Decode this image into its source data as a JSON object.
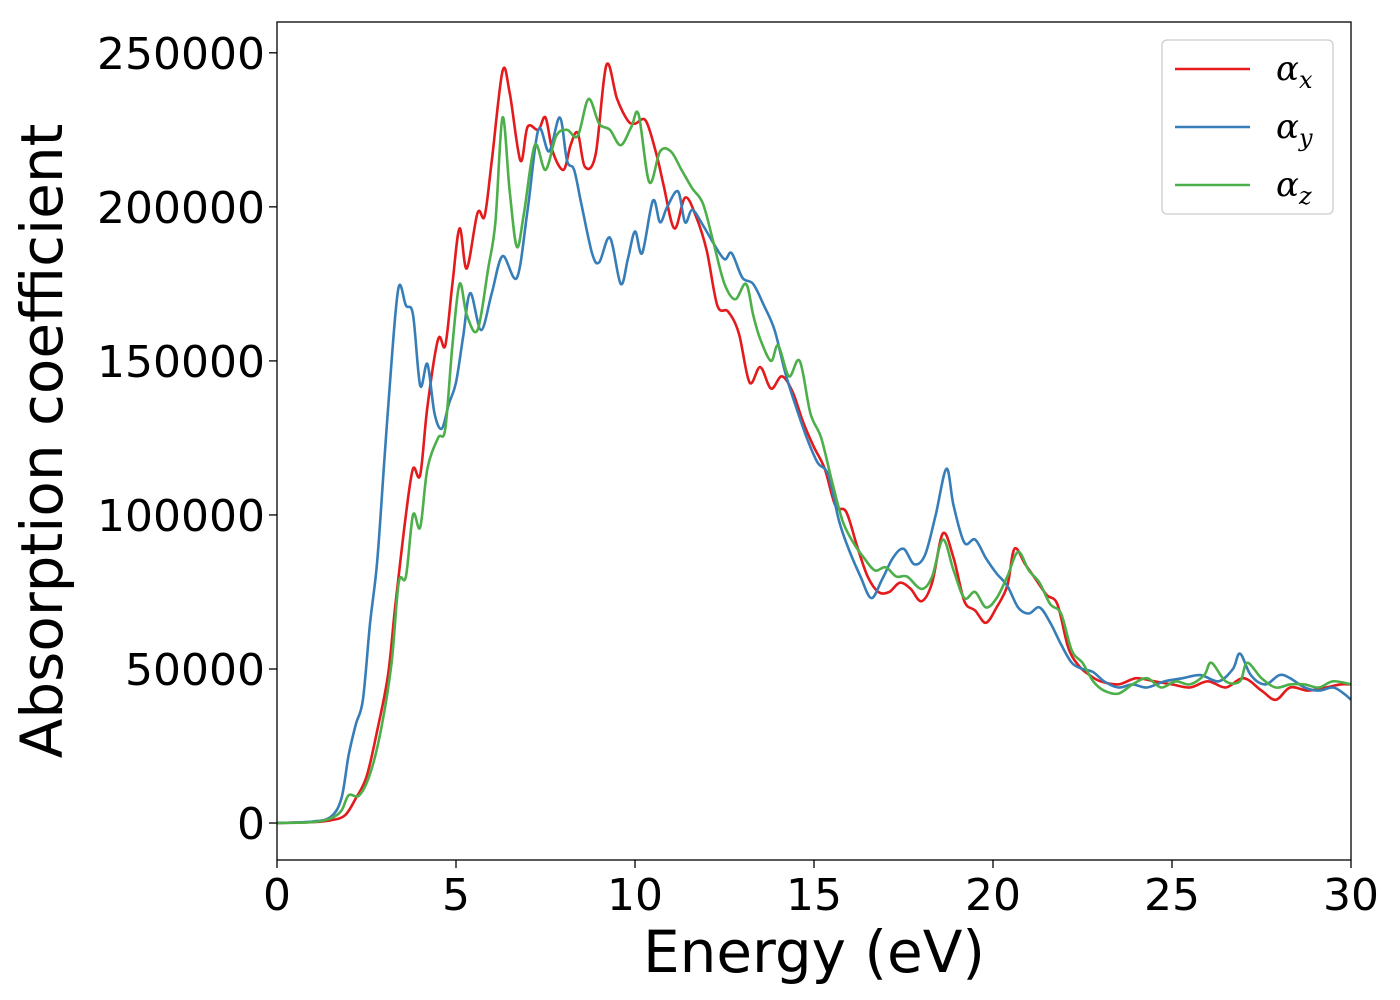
{
  "chart_data": {
    "type": "line",
    "title": "",
    "xlabel": "Energy (eV)",
    "ylabel": "Absorption coefficient",
    "xlim": [
      0,
      30
    ],
    "ylim": [
      -12000,
      260000
    ],
    "xticks": [
      0,
      5,
      10,
      15,
      20,
      25,
      30
    ],
    "yticks": [
      0,
      50000,
      100000,
      150000,
      200000,
      250000
    ],
    "grid": false,
    "legend_position": "top-right",
    "series": [
      {
        "name": "αx",
        "symbol": "α",
        "sub": "x",
        "color": "#e41a1c",
        "points": [
          [
            0,
            0
          ],
          [
            1,
            300
          ],
          [
            1.5,
            900
          ],
          [
            1.9,
            2500
          ],
          [
            2.2,
            8000
          ],
          [
            2.5,
            15000
          ],
          [
            2.8,
            30000
          ],
          [
            3.1,
            48000
          ],
          [
            3.3,
            70000
          ],
          [
            3.6,
            100000
          ],
          [
            3.8,
            115000
          ],
          [
            4.0,
            113000
          ],
          [
            4.2,
            135000
          ],
          [
            4.5,
            157000
          ],
          [
            4.7,
            155000
          ],
          [
            4.9,
            175000
          ],
          [
            5.1,
            193000
          ],
          [
            5.3,
            180000
          ],
          [
            5.6,
            198000
          ],
          [
            5.8,
            197000
          ],
          [
            6.0,
            215000
          ],
          [
            6.3,
            244000
          ],
          [
            6.5,
            237000
          ],
          [
            6.8,
            215000
          ],
          [
            7.0,
            226000
          ],
          [
            7.3,
            225000
          ],
          [
            7.5,
            229000
          ],
          [
            7.7,
            218000
          ],
          [
            8.0,
            212000
          ],
          [
            8.2,
            220000
          ],
          [
            8.4,
            224000
          ],
          [
            8.6,
            213000
          ],
          [
            8.9,
            217000
          ],
          [
            9.2,
            246000
          ],
          [
            9.5,
            235000
          ],
          [
            9.8,
            228000
          ],
          [
            10.0,
            227000
          ],
          [
            10.3,
            228000
          ],
          [
            10.6,
            217000
          ],
          [
            10.8,
            207000
          ],
          [
            11.1,
            193000
          ],
          [
            11.4,
            203000
          ],
          [
            11.7,
            197000
          ],
          [
            12.0,
            186000
          ],
          [
            12.3,
            168000
          ],
          [
            12.6,
            166000
          ],
          [
            12.9,
            159000
          ],
          [
            13.2,
            143000
          ],
          [
            13.5,
            148000
          ],
          [
            13.8,
            141000
          ],
          [
            14.1,
            145000
          ],
          [
            14.4,
            140000
          ],
          [
            14.7,
            130000
          ],
          [
            15.0,
            122000
          ],
          [
            15.3,
            115000
          ],
          [
            15.6,
            103000
          ],
          [
            15.9,
            101000
          ],
          [
            16.2,
            90000
          ],
          [
            16.5,
            80000
          ],
          [
            16.8,
            75000
          ],
          [
            17.1,
            75000
          ],
          [
            17.4,
            78000
          ],
          [
            17.7,
            76000
          ],
          [
            18.0,
            72000
          ],
          [
            18.3,
            78000
          ],
          [
            18.6,
            94000
          ],
          [
            18.9,
            86000
          ],
          [
            19.2,
            72000
          ],
          [
            19.5,
            69000
          ],
          [
            19.8,
            65000
          ],
          [
            20.1,
            70000
          ],
          [
            20.4,
            77000
          ],
          [
            20.6,
            89000
          ],
          [
            20.9,
            84000
          ],
          [
            21.2,
            79000
          ],
          [
            21.5,
            74000
          ],
          [
            21.8,
            71000
          ],
          [
            22.1,
            57000
          ],
          [
            22.4,
            51000
          ],
          [
            22.7,
            48000
          ],
          [
            23.0,
            46000
          ],
          [
            23.5,
            45000
          ],
          [
            24.0,
            47000
          ],
          [
            24.5,
            46000
          ],
          [
            25.0,
            45000
          ],
          [
            25.5,
            44000
          ],
          [
            26.0,
            46000
          ],
          [
            26.5,
            44000
          ],
          [
            27.0,
            47000
          ],
          [
            27.5,
            43000
          ],
          [
            27.9,
            40000
          ],
          [
            28.3,
            44000
          ],
          [
            28.8,
            43000
          ],
          [
            29.3,
            44000
          ],
          [
            29.7,
            45000
          ],
          [
            30.0,
            45000
          ]
        ]
      },
      {
        "name": "αy",
        "symbol": "α",
        "sub": "y",
        "color": "#377eb8",
        "points": [
          [
            0,
            0
          ],
          [
            1,
            500
          ],
          [
            1.5,
            2000
          ],
          [
            1.8,
            8000
          ],
          [
            2.0,
            22000
          ],
          [
            2.2,
            32000
          ],
          [
            2.4,
            40000
          ],
          [
            2.6,
            65000
          ],
          [
            2.8,
            85000
          ],
          [
            3.0,
            118000
          ],
          [
            3.2,
            150000
          ],
          [
            3.4,
            174000
          ],
          [
            3.6,
            168000
          ],
          [
            3.8,
            165000
          ],
          [
            4.0,
            142000
          ],
          [
            4.2,
            149000
          ],
          [
            4.4,
            133000
          ],
          [
            4.6,
            128000
          ],
          [
            4.8,
            136000
          ],
          [
            5.0,
            143000
          ],
          [
            5.2,
            158000
          ],
          [
            5.4,
            172000
          ],
          [
            5.7,
            160000
          ],
          [
            6.0,
            172000
          ],
          [
            6.3,
            184000
          ],
          [
            6.7,
            177000
          ],
          [
            7.0,
            199000
          ],
          [
            7.3,
            225000
          ],
          [
            7.6,
            218000
          ],
          [
            7.9,
            229000
          ],
          [
            8.1,
            215000
          ],
          [
            8.3,
            212000
          ],
          [
            8.5,
            201000
          ],
          [
            8.8,
            185000
          ],
          [
            9.0,
            182000
          ],
          [
            9.3,
            190000
          ],
          [
            9.6,
            175000
          ],
          [
            9.8,
            183000
          ],
          [
            10.0,
            192000
          ],
          [
            10.2,
            185000
          ],
          [
            10.5,
            202000
          ],
          [
            10.7,
            195000
          ],
          [
            10.9,
            200000
          ],
          [
            11.2,
            205000
          ],
          [
            11.4,
            195000
          ],
          [
            11.6,
            199000
          ],
          [
            11.9,
            194000
          ],
          [
            12.2,
            188000
          ],
          [
            12.5,
            183000
          ],
          [
            12.7,
            185000
          ],
          [
            13.0,
            177000
          ],
          [
            13.3,
            175000
          ],
          [
            13.6,
            168000
          ],
          [
            13.9,
            160000
          ],
          [
            14.2,
            146000
          ],
          [
            14.5,
            135000
          ],
          [
            14.8,
            125000
          ],
          [
            15.1,
            117000
          ],
          [
            15.4,
            113000
          ],
          [
            15.7,
            98000
          ],
          [
            16.0,
            88000
          ],
          [
            16.3,
            80000
          ],
          [
            16.6,
            73000
          ],
          [
            16.9,
            79000
          ],
          [
            17.2,
            86000
          ],
          [
            17.5,
            89000
          ],
          [
            17.8,
            84000
          ],
          [
            18.1,
            87000
          ],
          [
            18.4,
            100000
          ],
          [
            18.7,
            115000
          ],
          [
            18.9,
            103000
          ],
          [
            19.2,
            91000
          ],
          [
            19.5,
            92000
          ],
          [
            19.8,
            86000
          ],
          [
            20.1,
            81000
          ],
          [
            20.4,
            77000
          ],
          [
            20.7,
            70000
          ],
          [
            21.0,
            68000
          ],
          [
            21.3,
            70000
          ],
          [
            21.6,
            65000
          ],
          [
            21.9,
            58000
          ],
          [
            22.2,
            52000
          ],
          [
            22.5,
            50000
          ],
          [
            22.8,
            49000
          ],
          [
            23.1,
            46000
          ],
          [
            23.5,
            44000
          ],
          [
            23.9,
            45000
          ],
          [
            24.3,
            44000
          ],
          [
            24.8,
            46000
          ],
          [
            25.3,
            47000
          ],
          [
            25.8,
            48000
          ],
          [
            26.3,
            46000
          ],
          [
            26.7,
            50000
          ],
          [
            26.9,
            55000
          ],
          [
            27.2,
            48000
          ],
          [
            27.6,
            45000
          ],
          [
            28.0,
            48000
          ],
          [
            28.3,
            47000
          ],
          [
            28.7,
            44000
          ],
          [
            29.1,
            43000
          ],
          [
            29.5,
            44000
          ],
          [
            29.8,
            42000
          ],
          [
            30.0,
            40000
          ]
        ]
      },
      {
        "name": "αz",
        "symbol": "α",
        "sub": "z",
        "color": "#4daf4a",
        "points": [
          [
            0,
            0
          ],
          [
            1,
            300
          ],
          [
            1.5,
            1500
          ],
          [
            1.8,
            4000
          ],
          [
            2.0,
            9000
          ],
          [
            2.3,
            9000
          ],
          [
            2.6,
            16000
          ],
          [
            2.9,
            30000
          ],
          [
            3.2,
            52000
          ],
          [
            3.4,
            78000
          ],
          [
            3.6,
            80000
          ],
          [
            3.8,
            100000
          ],
          [
            4.0,
            96000
          ],
          [
            4.2,
            115000
          ],
          [
            4.5,
            125000
          ],
          [
            4.7,
            128000
          ],
          [
            4.9,
            155000
          ],
          [
            5.1,
            175000
          ],
          [
            5.3,
            165000
          ],
          [
            5.6,
            160000
          ],
          [
            5.9,
            180000
          ],
          [
            6.1,
            195000
          ],
          [
            6.3,
            229000
          ],
          [
            6.5,
            205000
          ],
          [
            6.7,
            187000
          ],
          [
            6.9,
            198000
          ],
          [
            7.2,
            220000
          ],
          [
            7.5,
            212000
          ],
          [
            7.8,
            223000
          ],
          [
            8.1,
            225000
          ],
          [
            8.4,
            223000
          ],
          [
            8.7,
            235000
          ],
          [
            9.0,
            227000
          ],
          [
            9.3,
            225000
          ],
          [
            9.6,
            220000
          ],
          [
            9.9,
            226000
          ],
          [
            10.1,
            230000
          ],
          [
            10.4,
            208000
          ],
          [
            10.7,
            218000
          ],
          [
            11.0,
            218000
          ],
          [
            11.3,
            212000
          ],
          [
            11.6,
            206000
          ],
          [
            11.9,
            201000
          ],
          [
            12.2,
            188000
          ],
          [
            12.5,
            175000
          ],
          [
            12.8,
            170000
          ],
          [
            13.1,
            175000
          ],
          [
            13.3,
            165000
          ],
          [
            13.5,
            157000
          ],
          [
            13.8,
            150000
          ],
          [
            14.0,
            155000
          ],
          [
            14.3,
            145000
          ],
          [
            14.6,
            150000
          ],
          [
            14.9,
            133000
          ],
          [
            15.2,
            125000
          ],
          [
            15.5,
            111000
          ],
          [
            15.8,
            98000
          ],
          [
            16.1,
            91000
          ],
          [
            16.4,
            86000
          ],
          [
            16.7,
            82000
          ],
          [
            17.0,
            83000
          ],
          [
            17.3,
            80000
          ],
          [
            17.6,
            80000
          ],
          [
            18.0,
            76000
          ],
          [
            18.3,
            80000
          ],
          [
            18.6,
            92000
          ],
          [
            18.9,
            82000
          ],
          [
            19.2,
            73000
          ],
          [
            19.5,
            75000
          ],
          [
            19.8,
            70000
          ],
          [
            20.1,
            73000
          ],
          [
            20.4,
            80000
          ],
          [
            20.7,
            88000
          ],
          [
            21.0,
            82000
          ],
          [
            21.3,
            78000
          ],
          [
            21.6,
            71000
          ],
          [
            21.9,
            68000
          ],
          [
            22.2,
            56000
          ],
          [
            22.5,
            52000
          ],
          [
            22.8,
            46000
          ],
          [
            23.1,
            43000
          ],
          [
            23.5,
            42000
          ],
          [
            23.9,
            45000
          ],
          [
            24.3,
            47000
          ],
          [
            24.7,
            44000
          ],
          [
            25.1,
            46000
          ],
          [
            25.5,
            45000
          ],
          [
            25.9,
            48000
          ],
          [
            26.1,
            52000
          ],
          [
            26.5,
            46000
          ],
          [
            26.9,
            46000
          ],
          [
            27.1,
            52000
          ],
          [
            27.5,
            47000
          ],
          [
            27.9,
            44000
          ],
          [
            28.3,
            45000
          ],
          [
            28.7,
            45000
          ],
          [
            29.1,
            44000
          ],
          [
            29.5,
            46000
          ],
          [
            30.0,
            45000
          ]
        ]
      }
    ]
  }
}
